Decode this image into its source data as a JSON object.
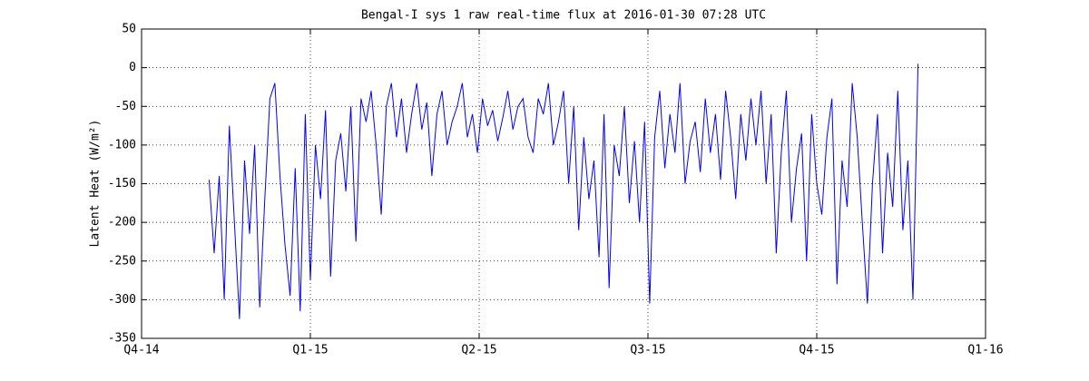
{
  "chart_data": {
    "type": "line",
    "title": "Bengal-I sys 1 raw real-time flux at 2016-01-30 07:28 UTC",
    "ylabel": "Latent Heat (W/m²)",
    "color": "#0000ff",
    "grid": true,
    "xlim": [
      0,
      5
    ],
    "ylim": [
      -350,
      50
    ],
    "xticks": [
      {
        "value": 0,
        "label": "Q4-14"
      },
      {
        "value": 1,
        "label": "Q1-15"
      },
      {
        "value": 2,
        "label": "Q2-15"
      },
      {
        "value": 3,
        "label": "Q3-15"
      },
      {
        "value": 4,
        "label": "Q4-15"
      },
      {
        "value": 5,
        "label": "Q1-16"
      }
    ],
    "yticks": [
      50,
      0,
      -50,
      -100,
      -150,
      -200,
      -250,
      -300,
      -350
    ],
    "x": [
      0.4,
      0.43,
      0.46,
      0.49,
      0.52,
      0.55,
      0.58,
      0.61,
      0.64,
      0.67,
      0.7,
      0.73,
      0.76,
      0.79,
      0.82,
      0.85,
      0.88,
      0.91,
      0.94,
      0.97,
      1.0,
      1.03,
      1.06,
      1.09,
      1.12,
      1.15,
      1.18,
      1.21,
      1.24,
      1.27,
      1.3,
      1.33,
      1.36,
      1.39,
      1.42,
      1.45,
      1.48,
      1.51,
      1.54,
      1.57,
      1.6,
      1.63,
      1.66,
      1.69,
      1.72,
      1.75,
      1.78,
      1.81,
      1.84,
      1.87,
      1.9,
      1.93,
      1.96,
      1.99,
      2.02,
      2.05,
      2.08,
      2.11,
      2.14,
      2.17,
      2.2,
      2.23,
      2.26,
      2.29,
      2.32,
      2.35,
      2.38,
      2.41,
      2.44,
      2.47,
      2.5,
      2.53,
      2.56,
      2.59,
      2.62,
      2.65,
      2.68,
      2.71,
      2.74,
      2.77,
      2.8,
      2.83,
      2.86,
      2.89,
      2.92,
      2.95,
      2.98,
      3.01,
      3.04,
      3.07,
      3.1,
      3.13,
      3.16,
      3.19,
      3.22,
      3.25,
      3.28,
      3.31,
      3.34,
      3.37,
      3.4,
      3.43,
      3.46,
      3.49,
      3.52,
      3.55,
      3.58,
      3.61,
      3.64,
      3.67,
      3.7,
      3.73,
      3.76,
      3.79,
      3.82,
      3.85,
      3.88,
      3.91,
      3.94,
      3.97,
      4.0,
      4.03,
      4.06,
      4.09,
      4.12,
      4.15,
      4.18,
      4.21,
      4.24,
      4.27,
      4.3,
      4.33,
      4.36,
      4.39,
      4.42,
      4.45,
      4.48,
      4.51,
      4.54,
      4.57,
      4.6
    ],
    "values": [
      -145,
      -240,
      -140,
      -300,
      -75,
      -200,
      -325,
      -120,
      -215,
      -100,
      -310,
      -170,
      -40,
      -20,
      -140,
      -230,
      -295,
      -130,
      -315,
      -60,
      -275,
      -100,
      -170,
      -55,
      -270,
      -120,
      -85,
      -160,
      -50,
      -225,
      -40,
      -70,
      -30,
      -100,
      -190,
      -50,
      -20,
      -90,
      -40,
      -110,
      -60,
      -20,
      -80,
      -45,
      -140,
      -60,
      -30,
      -100,
      -70,
      -50,
      -20,
      -90,
      -60,
      -110,
      -40,
      -75,
      -55,
      -95,
      -65,
      -30,
      -80,
      -50,
      -40,
      -90,
      -110,
      -40,
      -60,
      -20,
      -100,
      -70,
      -30,
      -150,
      -50,
      -210,
      -90,
      -170,
      -120,
      -245,
      -60,
      -285,
      -100,
      -140,
      -50,
      -175,
      -95,
      -200,
      -70,
      -305,
      -90,
      -30,
      -130,
      -60,
      -110,
      -20,
      -150,
      -95,
      -70,
      -135,
      -40,
      -110,
      -60,
      -145,
      -30,
      -90,
      -170,
      -60,
      -120,
      -40,
      -100,
      -30,
      -150,
      -60,
      -240,
      -110,
      -30,
      -200,
      -130,
      -85,
      -250,
      -60,
      -150,
      -190,
      -90,
      -40,
      -280,
      -120,
      -180,
      -20,
      -90,
      -200,
      -305,
      -150,
      -60,
      -240,
      -110,
      -180,
      -30,
      -210,
      -120,
      -300,
      5
    ]
  }
}
